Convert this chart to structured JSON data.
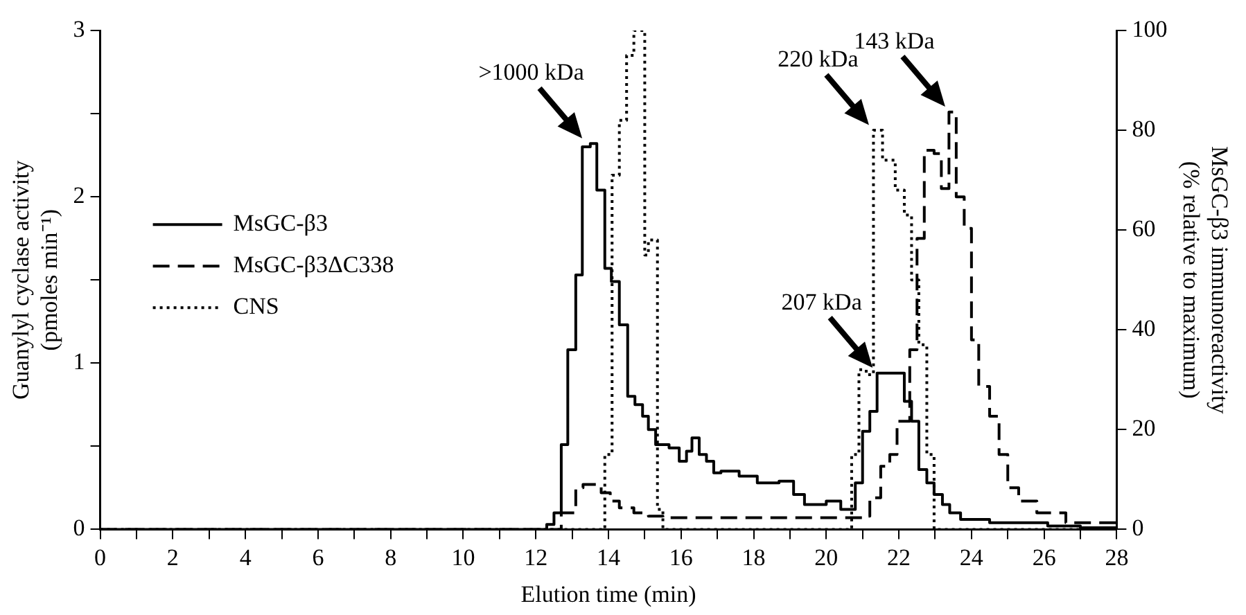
{
  "chart_data": {
    "type": "step",
    "xlabel": "Elution time (min)",
    "ylabel": "Guanylyl cyclase activity\n(pmoles min⁻¹)",
    "y2label": "MsGC-β3 immunoreactivity\n(% relative to maximum)",
    "xlim": [
      0,
      28
    ],
    "xticks": [
      0,
      {
        "value": 1,
        "label": null
      },
      2,
      {
        "value": 3,
        "label": null
      },
      4,
      {
        "value": 5,
        "label": null
      },
      6,
      {
        "value": 7,
        "label": null
      },
      8,
      {
        "value": 9,
        "label": null
      },
      10,
      {
        "value": 11,
        "label": null
      },
      12,
      {
        "value": 13,
        "label": null
      },
      14,
      {
        "value": 15,
        "label": null
      },
      16,
      {
        "value": 17,
        "label": null
      },
      18,
      {
        "value": 19,
        "label": null
      },
      20,
      {
        "value": 21,
        "label": null
      },
      22,
      {
        "value": 23,
        "label": null
      },
      24,
      {
        "value": 25,
        "label": null
      },
      26,
      {
        "value": 27,
        "label": null
      },
      28
    ],
    "ylim": [
      0,
      3
    ],
    "yticks": [
      0,
      {
        "value": 0.5,
        "label": null
      },
      1,
      {
        "value": 1.5,
        "label": null
      },
      2,
      {
        "value": 2.5,
        "label": null
      },
      3
    ],
    "y2lim": [
      0,
      100
    ],
    "y2ticks": [
      0,
      20,
      40,
      60,
      80,
      100
    ],
    "grid": false,
    "legend": "left",
    "annotations": [
      {
        "text": ">1000 kDa",
        "x": 13.4,
        "y": 2.32
      },
      {
        "text": "220 kDa",
        "x": 21.3,
        "y": 2.4
      },
      {
        "text": "207 kDa",
        "x": 21.4,
        "y": 0.94
      },
      {
        "text": "143 kDa",
        "x": 23.4,
        "y": 2.51
      }
    ],
    "series": [
      {
        "name": "MsGC-β3",
        "color": "#000000",
        "line_style": "solid",
        "x": [
          0,
          12.3,
          12.5,
          12.7,
          12.88,
          13.1,
          13.28,
          13.5,
          13.68,
          13.9,
          14.08,
          14.3,
          14.53,
          14.73,
          14.94,
          15.1,
          15.3,
          15.67,
          15.95,
          16.15,
          16.3,
          16.5,
          16.7,
          16.9,
          17.1,
          17.6,
          18.1,
          18.7,
          19.1,
          19.4,
          20.0,
          20.4,
          20.8,
          21.0,
          21.2,
          21.4,
          22.15,
          22.35,
          22.55,
          22.77,
          22.97,
          23.2,
          23.4,
          23.7,
          24.5,
          26.1,
          27.0,
          28
        ],
        "values": [
          0,
          0.03,
          0.1,
          0.51,
          1.08,
          1.53,
          2.3,
          2.32,
          2.04,
          1.57,
          1.49,
          1.23,
          0.8,
          0.75,
          0.68,
          0.6,
          0.51,
          0.49,
          0.41,
          0.47,
          0.55,
          0.45,
          0.41,
          0.34,
          0.35,
          0.32,
          0.28,
          0.29,
          0.21,
          0.15,
          0.17,
          0.12,
          0.28,
          0.59,
          0.71,
          0.94,
          0.77,
          0.65,
          0.36,
          0.28,
          0.21,
          0.15,
          0.1,
          0.06,
          0.04,
          0.02,
          0.01,
          0.01
        ]
      },
      {
        "name": "MsGC-β3ΔC338",
        "color": "#000000",
        "line_style": "dashed",
        "x": [
          0,
          12.7,
          13.1,
          13.3,
          13.8,
          14.05,
          14.3,
          14.7,
          15.1,
          15.5,
          20.9,
          21.0,
          21.2,
          21.5,
          21.75,
          21.95,
          22.3,
          22.5,
          22.7,
          22.97,
          23.17,
          23.38,
          23.58,
          23.8,
          24.0,
          24.2,
          24.5,
          24.76,
          25.0,
          25.3,
          25.8,
          26.6,
          28
        ],
        "values": [
          0,
          0.1,
          0.25,
          0.27,
          0.22,
          0.17,
          0.13,
          0.1,
          0.08,
          0.07,
          0.07,
          0.08,
          0.19,
          0.38,
          0.45,
          0.65,
          1.08,
          1.75,
          2.28,
          2.26,
          2.05,
          2.51,
          2.0,
          1.81,
          1.14,
          0.86,
          0.68,
          0.45,
          0.25,
          0.17,
          0.1,
          0.04,
          0.02
        ]
      },
      {
        "name": "CNS",
        "color": "#000000",
        "line_style": "dotted",
        "axis": "y2",
        "x": [
          0,
          13.9,
          14.1,
          14.3,
          14.5,
          14.7,
          15.0,
          15.1,
          15.35,
          15.5,
          20.7,
          20.9,
          21.1,
          21.3,
          21.55,
          21.9,
          22.15,
          22.35,
          22.55,
          22.77,
          22.97,
          28
        ],
        "values": [
          0,
          15,
          71,
          82,
          95,
          100,
          55,
          58,
          4,
          0,
          15,
          32,
          31,
          80,
          74,
          68,
          63,
          50,
          37,
          15,
          0,
          0
        ]
      }
    ]
  }
}
